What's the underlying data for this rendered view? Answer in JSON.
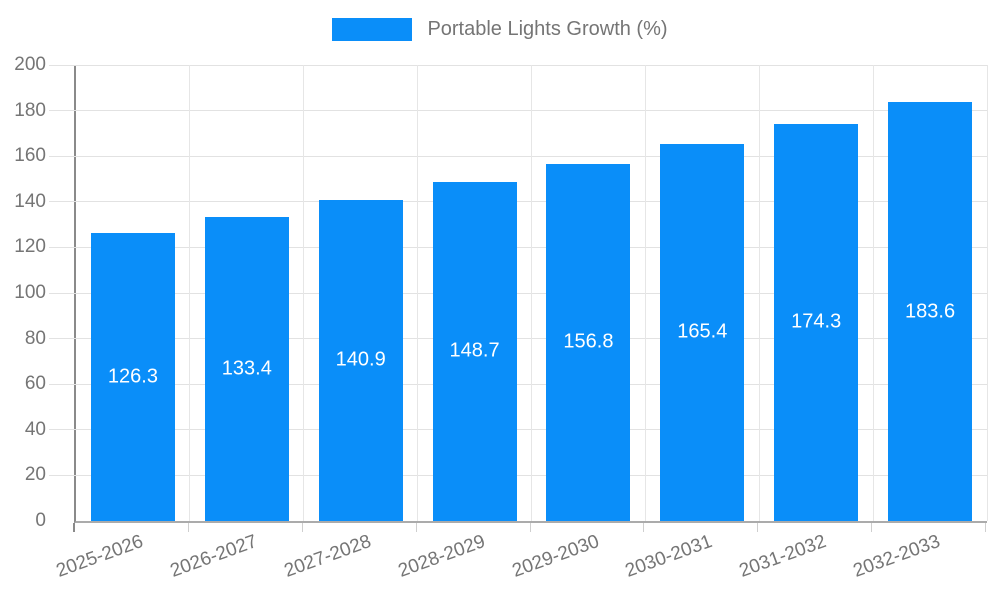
{
  "legend": {
    "label": "Portable Lights Growth (%)"
  },
  "colors": {
    "bar": "#0a8ef9",
    "axis_text": "#757575",
    "grid": "#e2e2e2",
    "value_label": "#ffffff"
  },
  "chart_data": {
    "type": "bar",
    "title": "",
    "xlabel": "",
    "ylabel": "",
    "categories": [
      "2025-2026",
      "2026-2027",
      "2027-2028",
      "2028-2029",
      "2029-2030",
      "2030-2031",
      "2031-2032",
      "2032-2033"
    ],
    "values": [
      126.3,
      133.4,
      140.9,
      148.7,
      156.8,
      165.4,
      174.3,
      183.6
    ],
    "value_labels": [
      "126.3",
      "133.4",
      "140.9",
      "148.7",
      "156.8",
      "165.4",
      "174.3",
      "183.6"
    ],
    "series_name": "Portable Lights Growth (%)",
    "ylim": [
      0,
      200
    ],
    "ytick_step": 20,
    "ytick_labels": [
      "0",
      "20",
      "40",
      "60",
      "80",
      "100",
      "120",
      "140",
      "160",
      "180",
      "200"
    ],
    "grid": true,
    "legend_position": "top-center",
    "bar_color": "#0a8ef9",
    "value_label_position": "center-inside",
    "xtick_rotation_deg": -20
  }
}
